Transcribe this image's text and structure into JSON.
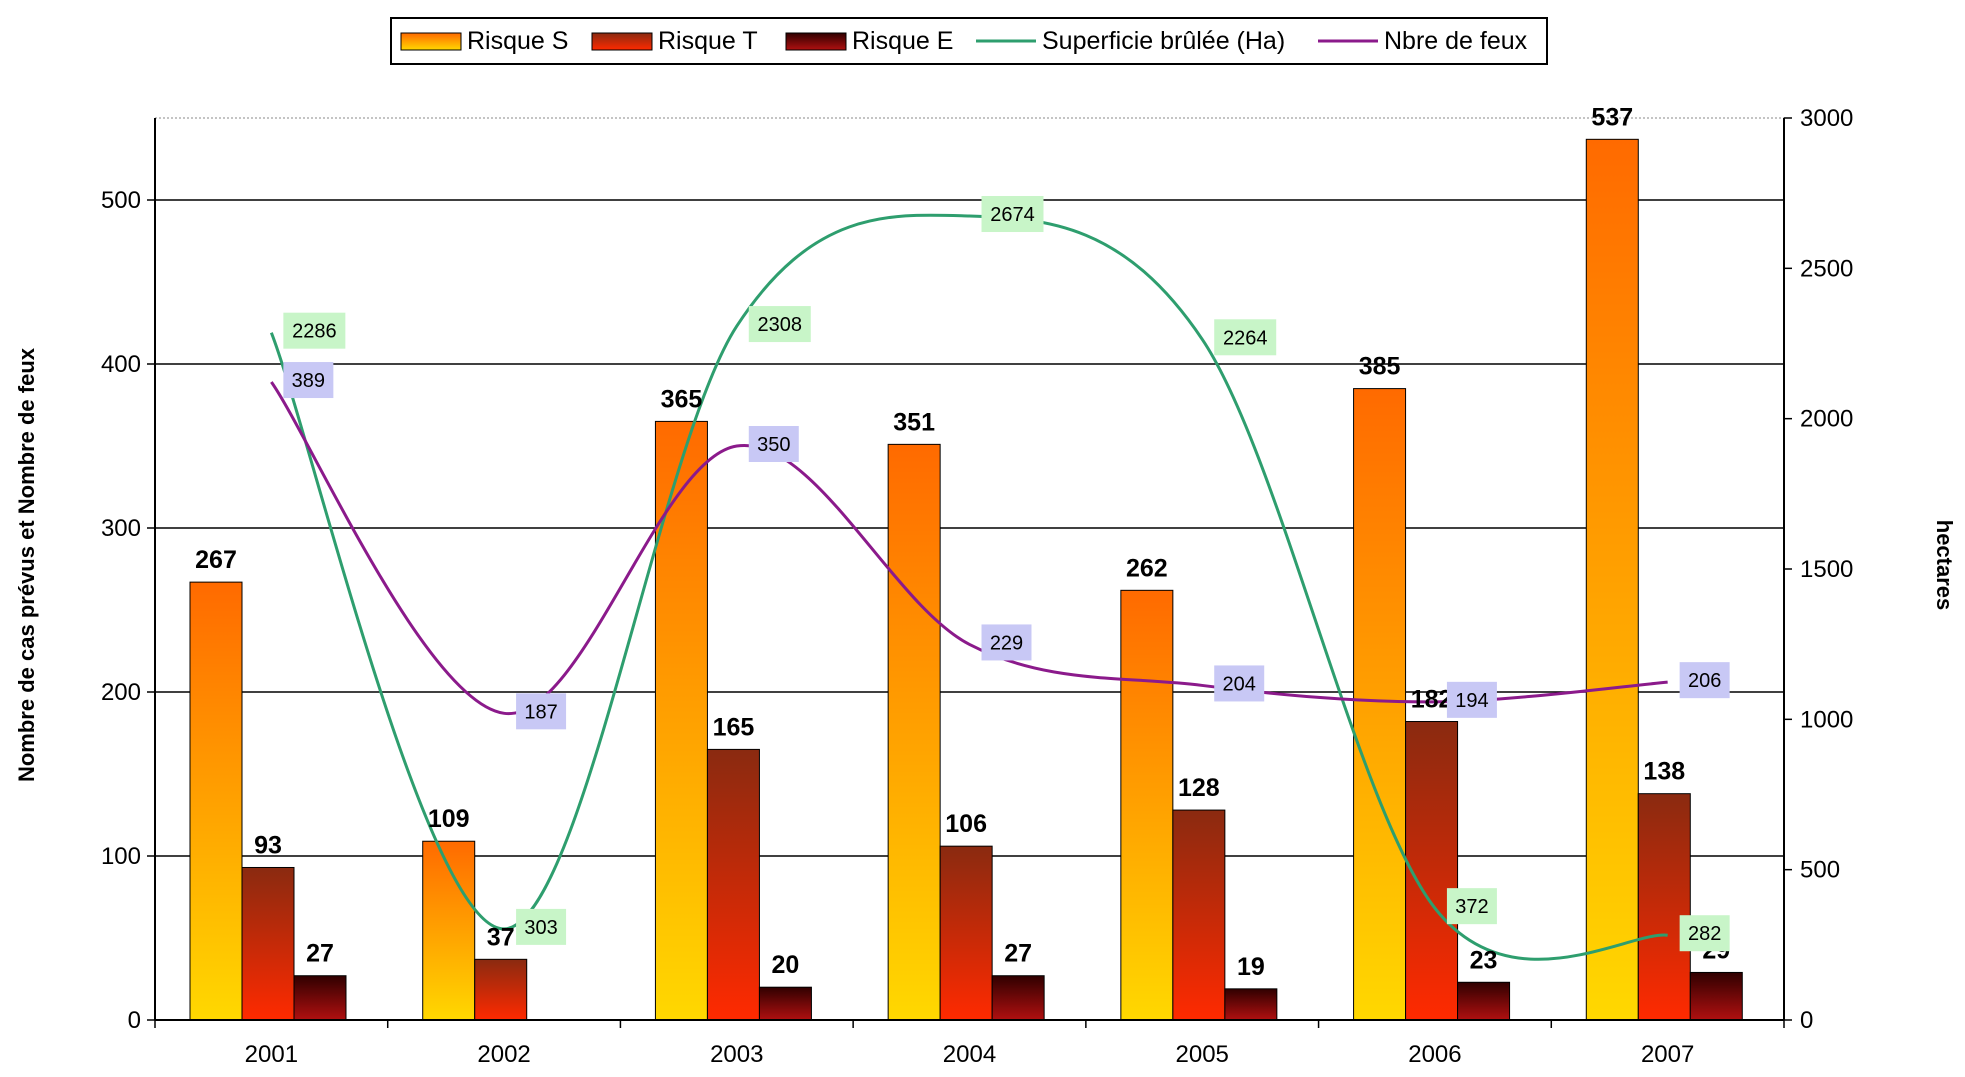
{
  "chart_data": {
    "type": "bar",
    "categories": [
      "2001",
      "2002",
      "2003",
      "2004",
      "2005",
      "2006",
      "2007"
    ],
    "series": [
      {
        "name": "Risque S",
        "kind": "bar",
        "axis": "left",
        "values": [
          267,
          109,
          365,
          351,
          262,
          385,
          537
        ]
      },
      {
        "name": "Risque T",
        "kind": "bar",
        "axis": "left",
        "values": [
          93,
          37,
          165,
          106,
          128,
          182,
          138
        ]
      },
      {
        "name": "Risque E",
        "kind": "bar",
        "axis": "left",
        "values": [
          27,
          null,
          20,
          27,
          19,
          23,
          29
        ]
      },
      {
        "name": "Superficie brûlée (Ha)",
        "kind": "line",
        "axis": "right",
        "color": "#2e9e6e",
        "label_bg": "#c8f5c8",
        "values": [
          2286,
          303,
          2308,
          2674,
          2264,
          372,
          282
        ]
      },
      {
        "name": "Nbre de feux",
        "kind": "line",
        "axis": "left",
        "color": "#8b1a8b",
        "label_bg": "#c8c8f5",
        "values": [
          389,
          187,
          350,
          229,
          204,
          194,
          206
        ]
      }
    ],
    "y_left": {
      "label": "Nombre de cas prévus et Nombre de feux",
      "min": 0,
      "max": 550,
      "ticks": [
        0,
        100,
        200,
        300,
        400,
        500
      ]
    },
    "y_right": {
      "label": "hectares",
      "min": 0,
      "max": 3000,
      "ticks": [
        0,
        500,
        1000,
        1500,
        2000,
        2500,
        3000
      ]
    },
    "grid": true,
    "legend_position": "top",
    "colors": {
      "risque_s": [
        "#ffd800",
        "#ff6a00"
      ],
      "risque_t": [
        "#ff2a00",
        "#8a2a10"
      ],
      "risque_e": [
        "#b01010",
        "#300000"
      ]
    }
  }
}
